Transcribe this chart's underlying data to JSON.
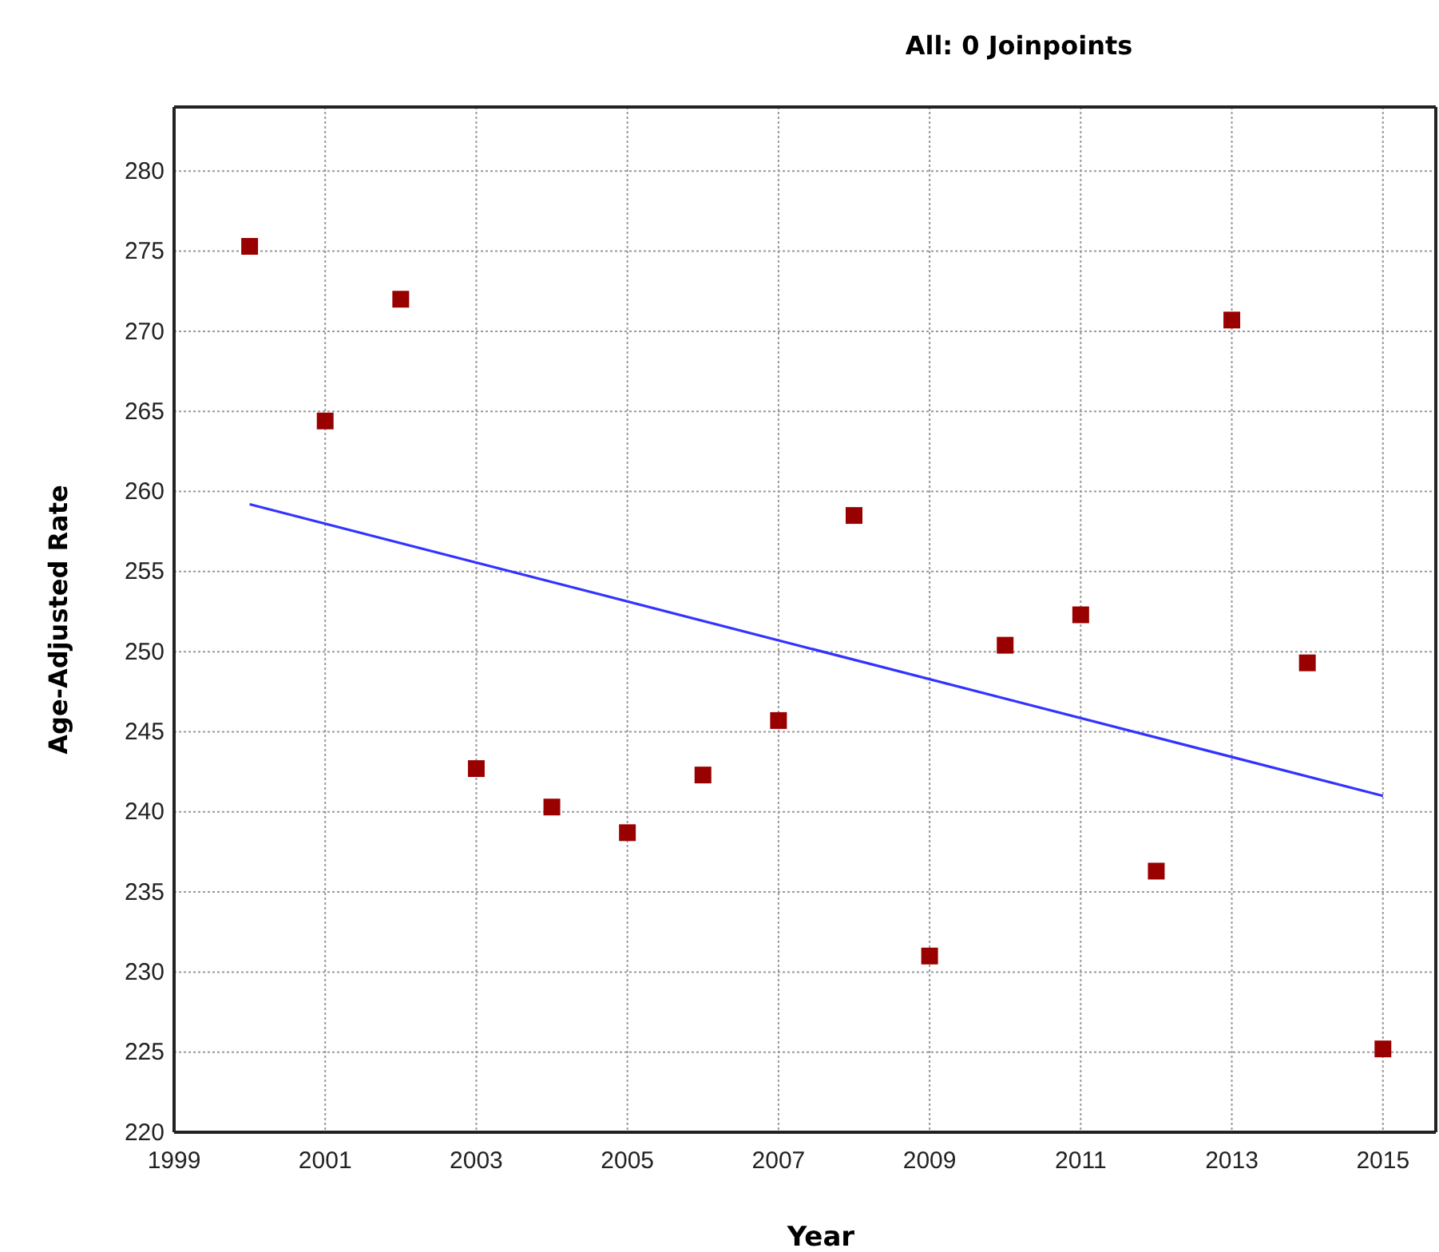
{
  "chart_data": {
    "type": "scatter",
    "title": "All: 0 Joinpoints",
    "xlabel": "Year",
    "ylabel": "Age-Adjusted Rate",
    "x": [
      2000,
      2001,
      2002,
      2003,
      2004,
      2005,
      2006,
      2007,
      2008,
      2009,
      2010,
      2011,
      2012,
      2013,
      2014,
      2015
    ],
    "series": [
      {
        "color": "#990000",
        "marker": "square",
        "values": [
          275.3,
          264.4,
          272.0,
          242.7,
          240.3,
          238.7,
          242.3,
          245.7,
          258.5,
          231.0,
          250.4,
          252.3,
          236.3,
          270.7,
          249.3,
          225.2
        ]
      },
      {
        "type": "line",
        "color": "#3333ff",
        "line_style": "solid",
        "x": [
          2000,
          2015
        ],
        "values": [
          259.2,
          241.0
        ]
      }
    ],
    "xlim": [
      1999,
      2015.7
    ],
    "xticks": [
      1999,
      2001,
      2003,
      2005,
      2007,
      2009,
      2011,
      2013,
      2015
    ],
    "ylim": [
      220,
      284
    ],
    "yticks": [
      220,
      225,
      230,
      235,
      240,
      245,
      250,
      255,
      260,
      265,
      270,
      275,
      280
    ],
    "grid": true
  }
}
